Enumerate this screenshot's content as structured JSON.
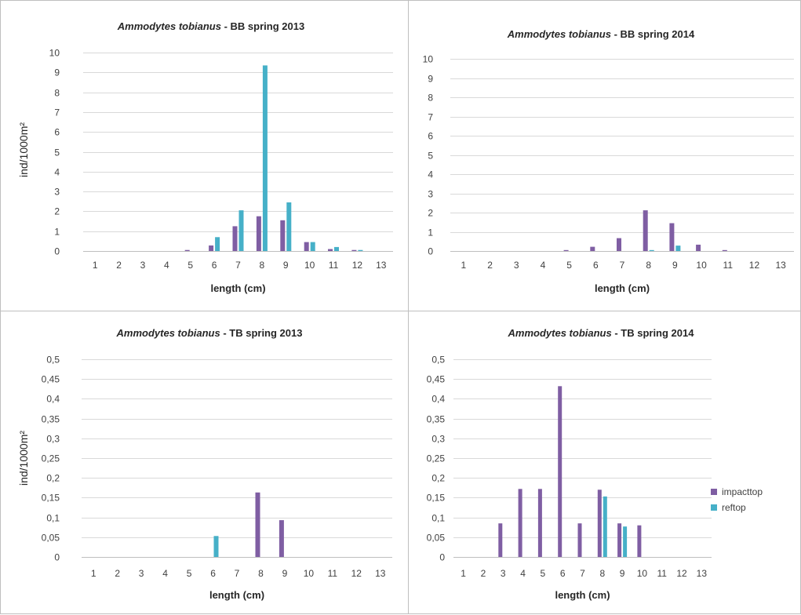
{
  "legend": {
    "items": [
      {
        "label": "impacttop",
        "color": "#7f5ea3"
      },
      {
        "label": "reftop",
        "color": "#46b0c8"
      }
    ]
  },
  "chart_data": [
    {
      "type": "bar",
      "title_species": "Ammodytes tobianus",
      "title_rest": " - BB spring 2013",
      "xlabel": "length (cm)",
      "ylabel": "ind/1000m²",
      "categories": [
        "1",
        "2",
        "3",
        "4",
        "5",
        "6",
        "7",
        "8",
        "9",
        "10",
        "11",
        "12",
        "13"
      ],
      "ylim": [
        0,
        10
      ],
      "yticks": [
        "0",
        "1",
        "2",
        "3",
        "4",
        "5",
        "6",
        "7",
        "8",
        "9",
        "10"
      ],
      "series": [
        {
          "name": "impacttop",
          "values": [
            0,
            0,
            0,
            0,
            0.05,
            0.28,
            1.25,
            1.75,
            1.55,
            0.45,
            0.1,
            0.05,
            0
          ]
        },
        {
          "name": "reftop",
          "values": [
            0,
            0,
            0,
            0,
            0,
            0.7,
            2.05,
            9.35,
            2.45,
            0.45,
            0.2,
            0.05,
            0
          ]
        }
      ]
    },
    {
      "type": "bar",
      "title_species": "Ammodytes tobianus",
      "title_rest": " - BB spring 2014",
      "xlabel": "length (cm)",
      "ylabel": "",
      "categories": [
        "1",
        "2",
        "3",
        "4",
        "5",
        "6",
        "7",
        "8",
        "9",
        "10",
        "11",
        "12",
        "13"
      ],
      "ylim": [
        0,
        10
      ],
      "yticks": [
        "0",
        "1",
        "2",
        "3",
        "4",
        "5",
        "6",
        "7",
        "8",
        "9",
        "10"
      ],
      "series": [
        {
          "name": "impacttop",
          "values": [
            0,
            0,
            0,
            0,
            0.05,
            0.22,
            0.67,
            2.12,
            1.45,
            0.33,
            0.05,
            0,
            0
          ]
        },
        {
          "name": "reftop",
          "values": [
            0,
            0,
            0,
            0,
            0,
            0,
            0,
            0.05,
            0.28,
            0,
            0,
            0,
            0
          ]
        }
      ]
    },
    {
      "type": "bar",
      "title_species": "Ammodytes tobianus",
      "title_rest": " - TB spring 2013",
      "xlabel": "length (cm)",
      "ylabel": "ind/1000m²",
      "categories": [
        "1",
        "2",
        "3",
        "4",
        "5",
        "6",
        "7",
        "8",
        "9",
        "10",
        "11",
        "12",
        "13"
      ],
      "ylim": [
        0,
        0.5
      ],
      "yticks": [
        "0",
        "0,05",
        "0,1",
        "0,15",
        "0,2",
        "0,25",
        "0,3",
        "0,35",
        "0,4",
        "0,45",
        "0,5"
      ],
      "series": [
        {
          "name": "impacttop",
          "values": [
            0,
            0,
            0,
            0,
            0,
            0,
            0,
            0.163,
            0.093,
            0,
            0,
            0,
            0
          ]
        },
        {
          "name": "reftop",
          "values": [
            0,
            0,
            0,
            0,
            0,
            0.053,
            0,
            0,
            0,
            0,
            0,
            0,
            0
          ]
        }
      ]
    },
    {
      "type": "bar",
      "title_species": "Ammodytes tobianus",
      "title_rest": " - TB spring 2014",
      "xlabel": "length (cm)",
      "ylabel": "",
      "categories": [
        "1",
        "2",
        "3",
        "4",
        "5",
        "6",
        "7",
        "8",
        "9",
        "10",
        "11",
        "12",
        "13"
      ],
      "ylim": [
        0,
        0.5
      ],
      "yticks": [
        "0",
        "0,05",
        "0,1",
        "0,15",
        "0,2",
        "0,25",
        "0,3",
        "0,35",
        "0,4",
        "0,45",
        "0,5"
      ],
      "series": [
        {
          "name": "impacttop",
          "values": [
            0,
            0,
            0.085,
            0.172,
            0.172,
            0.432,
            0.085,
            0.17,
            0.085,
            0.08,
            0,
            0,
            0
          ]
        },
        {
          "name": "reftop",
          "values": [
            0,
            0,
            0,
            0,
            0,
            0,
            0,
            0.153,
            0.077,
            0,
            0,
            0,
            0
          ]
        }
      ]
    }
  ]
}
